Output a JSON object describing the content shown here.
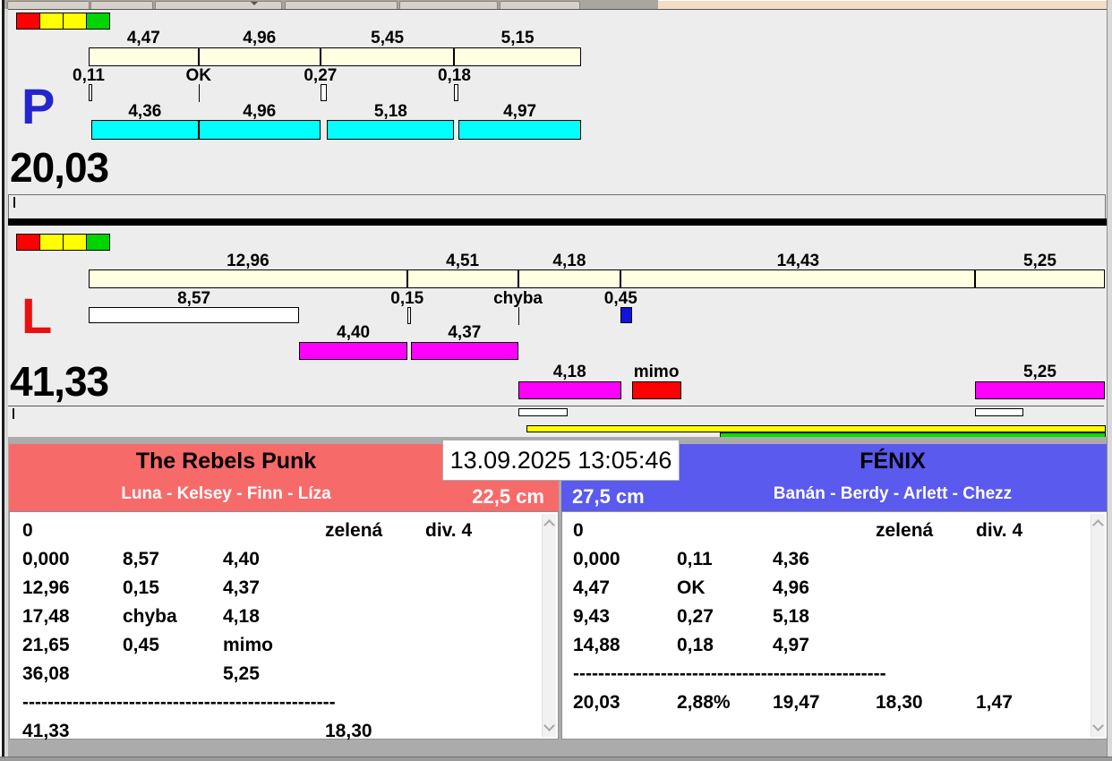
{
  "colors": {
    "panel_bg": "#EDEDED",
    "reference_bar": "#FFFFE1",
    "team_p_bar": "#00FFFF",
    "team_l_bar": "#FF00FF",
    "fault_bar": "#FF0000",
    "penalty_marker": "#1212DD",
    "progress_yellow": "#FFFF00",
    "progress_green": "#00E400",
    "team_left_header": "#F76A6A",
    "team_right_header": "#5A5AEE"
  },
  "panels": {
    "P": {
      "letter": "P",
      "letter_color": "#2525CE",
      "total": "20,03",
      "indicator": [
        "#FF0000",
        "#FFFF00",
        "#FFFF00",
        "#00D500"
      ],
      "own_color": "#00FFFF",
      "top_segments": [
        {
          "label": "4,47",
          "len": 4.47
        },
        {
          "label": "4,96",
          "len": 4.96
        },
        {
          "label": "5,45",
          "len": 5.45
        },
        {
          "label": "5,15",
          "len": 5.15
        }
      ],
      "markers": [
        {
          "label": "0,11",
          "pos": 0,
          "type": "box",
          "w": 0.11
        },
        {
          "label": "OK",
          "pos": 4.47,
          "type": "line",
          "w": 0
        },
        {
          "label": "0,27",
          "pos": 9.43,
          "type": "box",
          "w": 0.27
        },
        {
          "label": "0,18",
          "pos": 14.88,
          "type": "box",
          "w": 0.18
        }
      ],
      "own_bars": [
        {
          "label": "4,36",
          "start": 0.11,
          "len": 4.36,
          "row": 0
        },
        {
          "label": "4,96",
          "start": 4.47,
          "len": 4.96,
          "row": 0
        },
        {
          "label": "5,18",
          "start": 9.7,
          "len": 5.18,
          "row": 0
        },
        {
          "label": "4,97",
          "start": 15.06,
          "len": 4.97,
          "row": 0
        }
      ],
      "ghosts": [],
      "progress": []
    },
    "L": {
      "letter": "L",
      "letter_color": "#E91010",
      "total": "41,33",
      "indicator": [
        "#FF0000",
        "#FFFF00",
        "#FFFF00",
        "#00D500"
      ],
      "own_color": "#FF00FF",
      "top_segments": [
        {
          "label": "12,96",
          "len": 12.96
        },
        {
          "label": "4,51",
          "len": 4.51
        },
        {
          "label": "4,18",
          "len": 4.18
        },
        {
          "label": "14,43",
          "len": 14.43
        },
        {
          "label": "5,25",
          "len": 5.25
        }
      ],
      "markers": [
        {
          "label": "8,57",
          "pos": 0,
          "type": "wbar",
          "w": 8.57
        },
        {
          "label": "0,15",
          "pos": 12.96,
          "type": "box",
          "w": 0.15
        },
        {
          "label": "chyba",
          "pos": 17.47,
          "type": "line",
          "w": 0
        },
        {
          "label": "0,45",
          "pos": 21.65,
          "type": "bluebox",
          "w": 0.45
        }
      ],
      "own_bars": [
        {
          "label": "4,40",
          "start": 8.57,
          "len": 4.4,
          "row": 0
        },
        {
          "label": "4,37",
          "start": 13.11,
          "len": 4.37,
          "row": 0
        },
        {
          "label": "4,18",
          "start": 17.48,
          "len": 4.18,
          "row": 1
        },
        {
          "label": "mimo",
          "start": 22.1,
          "len": 2.0,
          "row": 1,
          "color": "#FF0000"
        },
        {
          "label": "5,25",
          "start": 36.08,
          "len": 5.25,
          "row": 1
        }
      ],
      "ghosts": [
        {
          "start": 17.48,
          "len": 2.0
        },
        {
          "start": 36.08,
          "len": 1.95
        }
      ],
      "progress": [
        {
          "color": "#FFFF00",
          "from": 17.8,
          "to": 41.4
        },
        {
          "color": "#00E400",
          "from": 25.7,
          "to": 41.4
        }
      ]
    }
  },
  "match": {
    "timestamp": "13.09.2025 13:05:46",
    "dashes": "--------------------------------------------------",
    "teams": [
      {
        "name": "The Rebels Punk",
        "players": "Luna - Kelsey - Finn - Líza",
        "size": "22,5 cm",
        "header_color": "#F76A6A",
        "table_rows": [
          [
            "0",
            "",
            "",
            "zelená",
            "div. 4"
          ],
          [
            "0,000",
            "8,57",
            "4,40",
            "",
            ""
          ],
          [
            "12,96",
            "0,15",
            "4,37",
            "",
            ""
          ],
          [
            "17,48",
            "chyba",
            "4,18",
            "",
            ""
          ],
          [
            "21,65",
            "0,45",
            "mimo",
            "",
            ""
          ],
          [
            "36,08",
            "",
            "5,25",
            "",
            ""
          ],
          [
            "@dashes",
            "",
            "",
            "",
            ""
          ],
          [
            "41,33",
            "",
            "",
            "18,30",
            ""
          ]
        ]
      },
      {
        "name": "FÉNIX",
        "players": "Banán - Berdy - Arlett - Chezz",
        "size": "27,5 cm",
        "header_color": "#5A5AEE",
        "table_rows": [
          [
            "0",
            "",
            "",
            "zelená",
            "div. 4"
          ],
          [
            "0,000",
            "0,11",
            "4,36",
            "",
            ""
          ],
          [
            "4,47",
            "OK",
            "4,96",
            "",
            ""
          ],
          [
            "9,43",
            "0,27",
            "5,18",
            "",
            ""
          ],
          [
            "14,88",
            "0,18",
            "4,97",
            "",
            ""
          ],
          [
            "@dashes",
            "",
            "",
            "",
            ""
          ],
          [
            "20,03",
            "2,88%",
            "19,47",
            "18,30",
            "1,47"
          ]
        ]
      }
    ]
  }
}
